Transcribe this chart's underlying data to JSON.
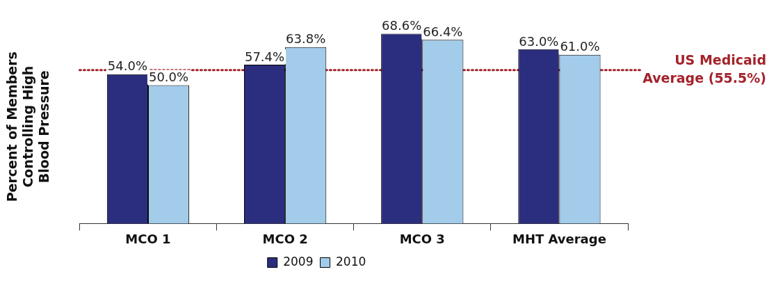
{
  "chart_data": {
    "type": "bar",
    "ylabel": "Percent of Members Controlling High Blood Pressure",
    "categories": [
      "MCO 1",
      "MCO 2",
      "MCO 3",
      "MHT Average"
    ],
    "series": [
      {
        "name": "2009",
        "color": "#2b2e7e",
        "values": [
          54.0,
          57.4,
          68.6,
          63.0
        ],
        "value_labels": [
          "54.0%",
          "57.4%",
          "68.6%",
          "63.0%"
        ]
      },
      {
        "name": "2010",
        "color": "#a3cbea",
        "values": [
          50.0,
          63.8,
          66.4,
          61.0
        ],
        "value_labels": [
          "50.0%",
          "63.8%",
          "66.4%",
          "61.0%"
        ]
      }
    ],
    "tick_labels": "x",
    "legend": "bottom",
    "ref_lines": [
      {
        "axis": "y",
        "value": 55.5,
        "label": "US Medicaid Average (55.5%)",
        "color": "#a3232b",
        "line_style": "dotted"
      }
    ]
  }
}
